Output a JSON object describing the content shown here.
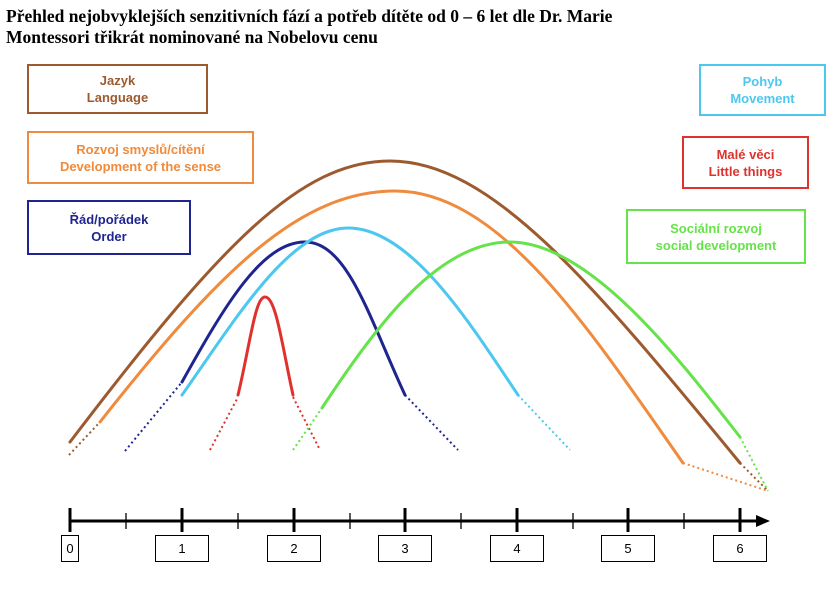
{
  "title": {
    "line1": "Přehled nejobvyklejších senzitivních fází a potřeb dítěte od 0 – 6 let dle Dr. Marie",
    "line2": "Montessori třikrát nominované na Nobelovu cenu"
  },
  "boxes": {
    "language": {
      "line1": "Jazyk",
      "line2": "Language",
      "color": "#9C5A2E"
    },
    "senses": {
      "line1": "Rozvoj smyslů/cítění",
      "line2": "Development of the sense",
      "color": "#F08A3C"
    },
    "order": {
      "line1": "Řád/pořádek",
      "line2": "Order",
      "color": "#1F2590"
    },
    "movement": {
      "line1": "Pohyb",
      "line2": "Movement",
      "color": "#4CC8F0"
    },
    "little_things": {
      "line1": "Malé věci",
      "line2": "Little things",
      "color": "#E0322D"
    },
    "social": {
      "line1": "Sociální rozvoj",
      "line2": "social development",
      "color": "#66E24A"
    }
  },
  "axis": {
    "tick_labels": [
      "0",
      "1",
      "2",
      "3",
      "4",
      "5",
      "6"
    ]
  }
}
